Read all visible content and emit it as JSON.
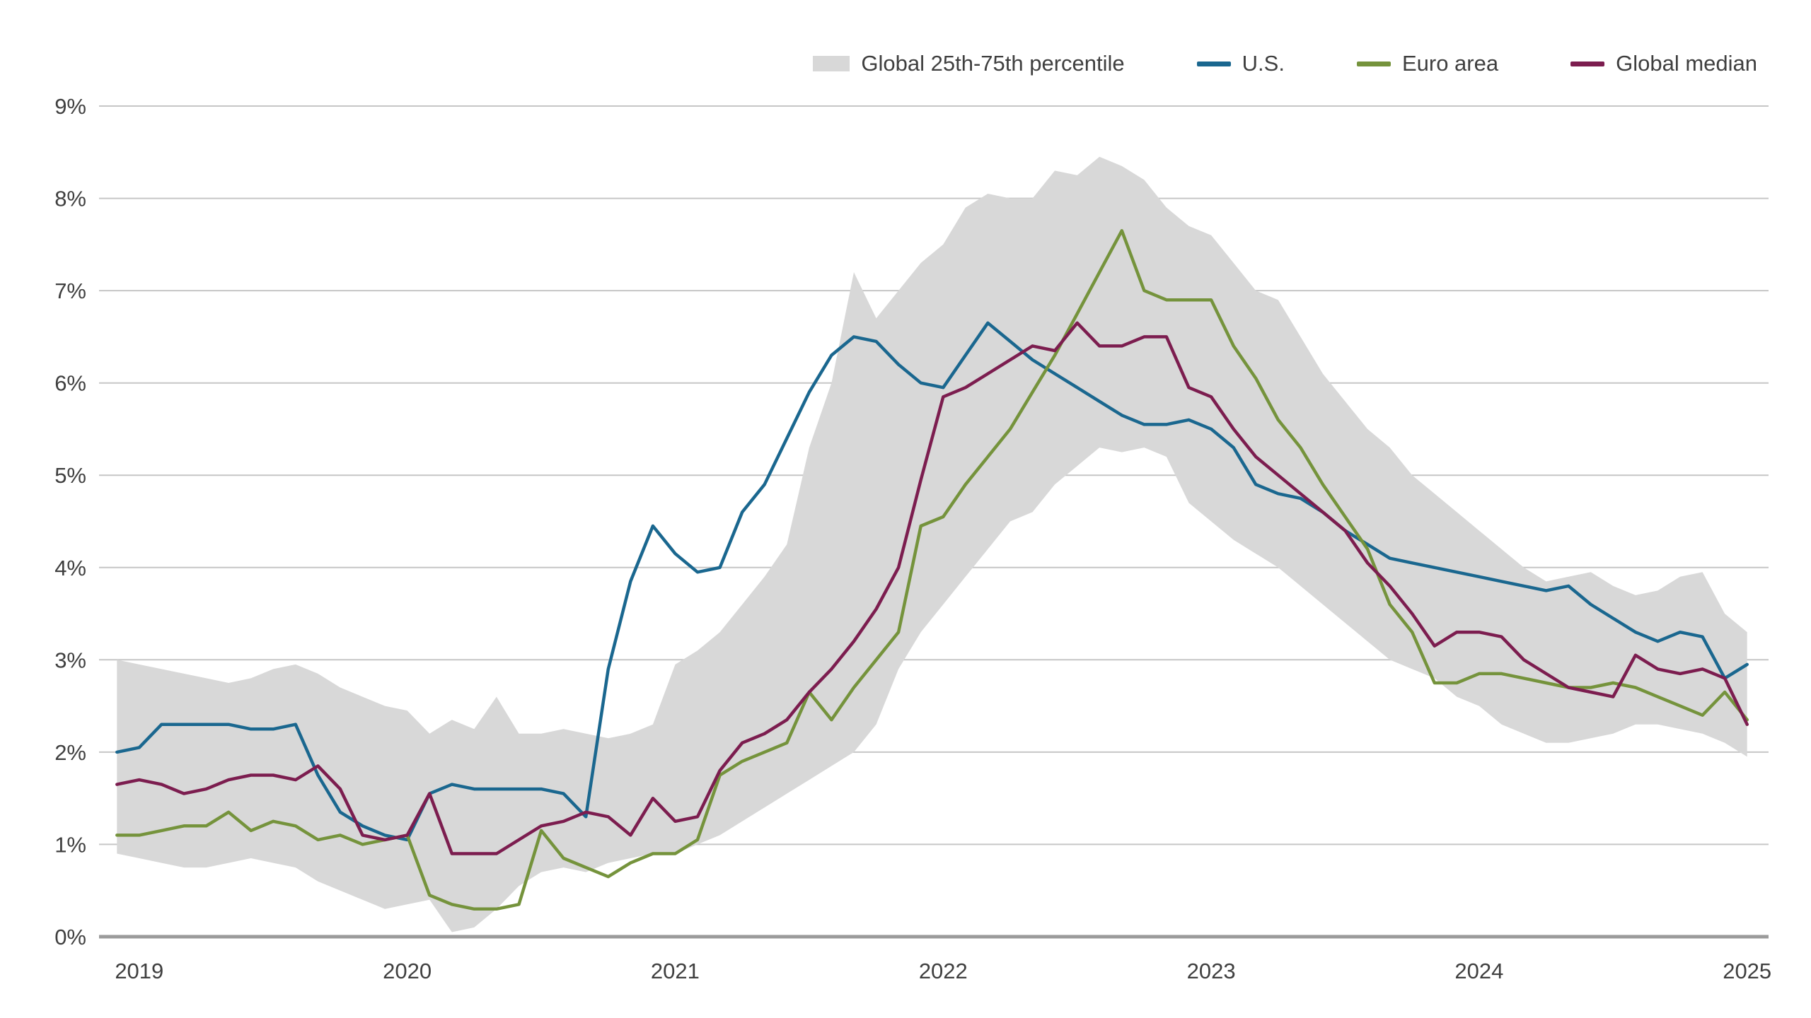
{
  "page": {
    "background": "#ffffff"
  },
  "legend": {
    "items": [
      {
        "key": "percentile-band",
        "label": "Global 25th-75th percentile",
        "color": "#d8d8d8",
        "swatch": "band"
      },
      {
        "key": "us",
        "label": "U.S.",
        "color": "#1a678f",
        "swatch": "line"
      },
      {
        "key": "euro-area",
        "label": "Euro area",
        "color": "#75933c",
        "swatch": "line"
      },
      {
        "key": "global-median",
        "label": "Global median",
        "color": "#7c1d4f",
        "swatch": "line"
      }
    ]
  },
  "chart_data": {
    "type": "line",
    "title": "",
    "x_unit": "month",
    "x_start_decimal_year": 2018.9167,
    "x_end_decimal_year": 2025.0,
    "xlim": [
      2018.85,
      2025.08
    ],
    "ylim": [
      0,
      9
    ],
    "grid": true,
    "legend_position": "top",
    "x_tick_years": [
      "2019",
      "2020",
      "2021",
      "2022",
      "2023",
      "2024",
      "2025"
    ],
    "y_tick_labels": [
      "0%",
      "1%",
      "2%",
      "3%",
      "4%",
      "5%",
      "6%",
      "7%",
      "8%",
      "9%"
    ],
    "gridline_color": "#c6c6c6",
    "axis_line_color": "#9b9b9b",
    "label_color": "#3f3f3f",
    "band": {
      "name": "Global 25th-75th percentile",
      "color": "#d8d8d8",
      "lower": [
        0.9,
        0.85,
        0.8,
        0.75,
        0.75,
        0.8,
        0.85,
        0.8,
        0.75,
        0.6,
        0.5,
        0.4,
        0.3,
        0.35,
        0.4,
        0.05,
        0.1,
        0.3,
        0.55,
        0.7,
        0.75,
        0.7,
        0.8,
        0.85,
        0.9,
        0.9,
        1.0,
        1.1,
        1.25,
        1.4,
        1.55,
        1.7,
        1.85,
        2.0,
        2.3,
        2.9,
        3.3,
        3.6,
        3.9,
        4.2,
        4.5,
        4.6,
        4.9,
        5.1,
        5.3,
        5.25,
        5.3,
        5.2,
        4.7,
        4.5,
        4.3,
        4.15,
        4.0,
        3.8,
        3.6,
        3.4,
        3.2,
        3.0,
        2.9,
        2.8,
        2.6,
        2.5,
        2.3,
        2.2,
        2.1,
        2.1,
        2.15,
        2.2,
        2.3,
        2.3,
        2.25,
        2.2,
        2.1,
        1.95
      ],
      "upper": [
        3.0,
        2.95,
        2.9,
        2.85,
        2.8,
        2.75,
        2.8,
        2.9,
        2.95,
        2.85,
        2.7,
        2.6,
        2.5,
        2.45,
        2.2,
        2.35,
        2.25,
        2.6,
        2.2,
        2.2,
        2.25,
        2.2,
        2.15,
        2.2,
        2.3,
        2.95,
        3.1,
        3.3,
        3.6,
        3.9,
        4.25,
        5.3,
        6.0,
        7.2,
        6.7,
        7.0,
        7.3,
        7.5,
        7.9,
        8.05,
        8.0,
        8.0,
        8.3,
        8.25,
        8.45,
        8.35,
        8.2,
        7.9,
        7.7,
        7.6,
        7.3,
        7.0,
        6.9,
        6.5,
        6.1,
        5.8,
        5.5,
        5.3,
        5.0,
        4.8,
        4.6,
        4.4,
        4.2,
        4.0,
        3.85,
        3.9,
        3.95,
        3.8,
        3.7,
        3.75,
        3.9,
        3.95,
        3.5,
        3.3
      ]
    },
    "series": [
      {
        "key": "us",
        "name": "U.S.",
        "color": "#1a678f",
        "values": [
          2.0,
          2.05,
          2.3,
          2.3,
          2.3,
          2.3,
          2.25,
          2.25,
          2.3,
          1.75,
          1.35,
          1.2,
          1.1,
          1.05,
          1.55,
          1.65,
          1.6,
          1.6,
          1.6,
          1.6,
          1.55,
          1.3,
          2.9,
          3.85,
          4.45,
          4.15,
          3.95,
          4.0,
          4.6,
          4.9,
          5.4,
          5.9,
          6.3,
          6.5,
          6.45,
          6.2,
          6.0,
          5.95,
          6.3,
          6.65,
          6.45,
          6.25,
          6.1,
          5.95,
          5.8,
          5.65,
          5.55,
          5.55,
          5.6,
          5.5,
          5.3,
          4.9,
          4.8,
          4.75,
          4.6,
          4.4,
          4.25,
          4.1,
          4.05,
          4.0,
          3.95,
          3.9,
          3.85,
          3.8,
          3.75,
          3.8,
          3.6,
          3.45,
          3.3,
          3.2,
          3.3,
          3.25,
          2.8,
          2.95
        ]
      },
      {
        "key": "euro-area",
        "name": "Euro area",
        "color": "#75933c",
        "values": [
          1.1,
          1.1,
          1.15,
          1.2,
          1.2,
          1.35,
          1.15,
          1.25,
          1.2,
          1.05,
          1.1,
          1.0,
          1.05,
          1.1,
          0.45,
          0.35,
          0.3,
          0.3,
          0.35,
          1.15,
          0.85,
          0.75,
          0.65,
          0.8,
          0.9,
          0.9,
          1.05,
          1.75,
          1.9,
          2.0,
          2.1,
          2.65,
          2.35,
          2.7,
          3.0,
          3.3,
          4.45,
          4.55,
          4.9,
          5.2,
          5.5,
          5.9,
          6.3,
          6.75,
          7.2,
          7.65,
          7.0,
          6.9,
          6.9,
          6.9,
          6.4,
          6.05,
          5.6,
          5.3,
          4.9,
          4.55,
          4.2,
          3.6,
          3.3,
          2.75,
          2.75,
          2.85,
          2.85,
          2.8,
          2.75,
          2.7,
          2.7,
          2.75,
          2.7,
          2.6,
          2.5,
          2.4,
          2.65,
          2.35
        ]
      },
      {
        "key": "global-median",
        "name": "Global median",
        "color": "#7c1d4f",
        "values": [
          1.65,
          1.7,
          1.65,
          1.55,
          1.6,
          1.7,
          1.75,
          1.75,
          1.7,
          1.85,
          1.6,
          1.1,
          1.05,
          1.1,
          1.55,
          0.9,
          0.9,
          0.9,
          1.05,
          1.2,
          1.25,
          1.35,
          1.3,
          1.1,
          1.5,
          1.25,
          1.3,
          1.8,
          2.1,
          2.2,
          2.35,
          2.65,
          2.9,
          3.2,
          3.55,
          4.0,
          4.95,
          5.85,
          5.95,
          6.1,
          6.25,
          6.4,
          6.35,
          6.65,
          6.4,
          6.4,
          6.5,
          6.5,
          5.95,
          5.85,
          5.5,
          5.2,
          5.0,
          4.8,
          4.6,
          4.4,
          4.05,
          3.8,
          3.5,
          3.15,
          3.3,
          3.3,
          3.25,
          3.0,
          2.85,
          2.7,
          2.65,
          2.6,
          3.05,
          2.9,
          2.85,
          2.9,
          2.8,
          2.3
        ]
      }
    ]
  }
}
